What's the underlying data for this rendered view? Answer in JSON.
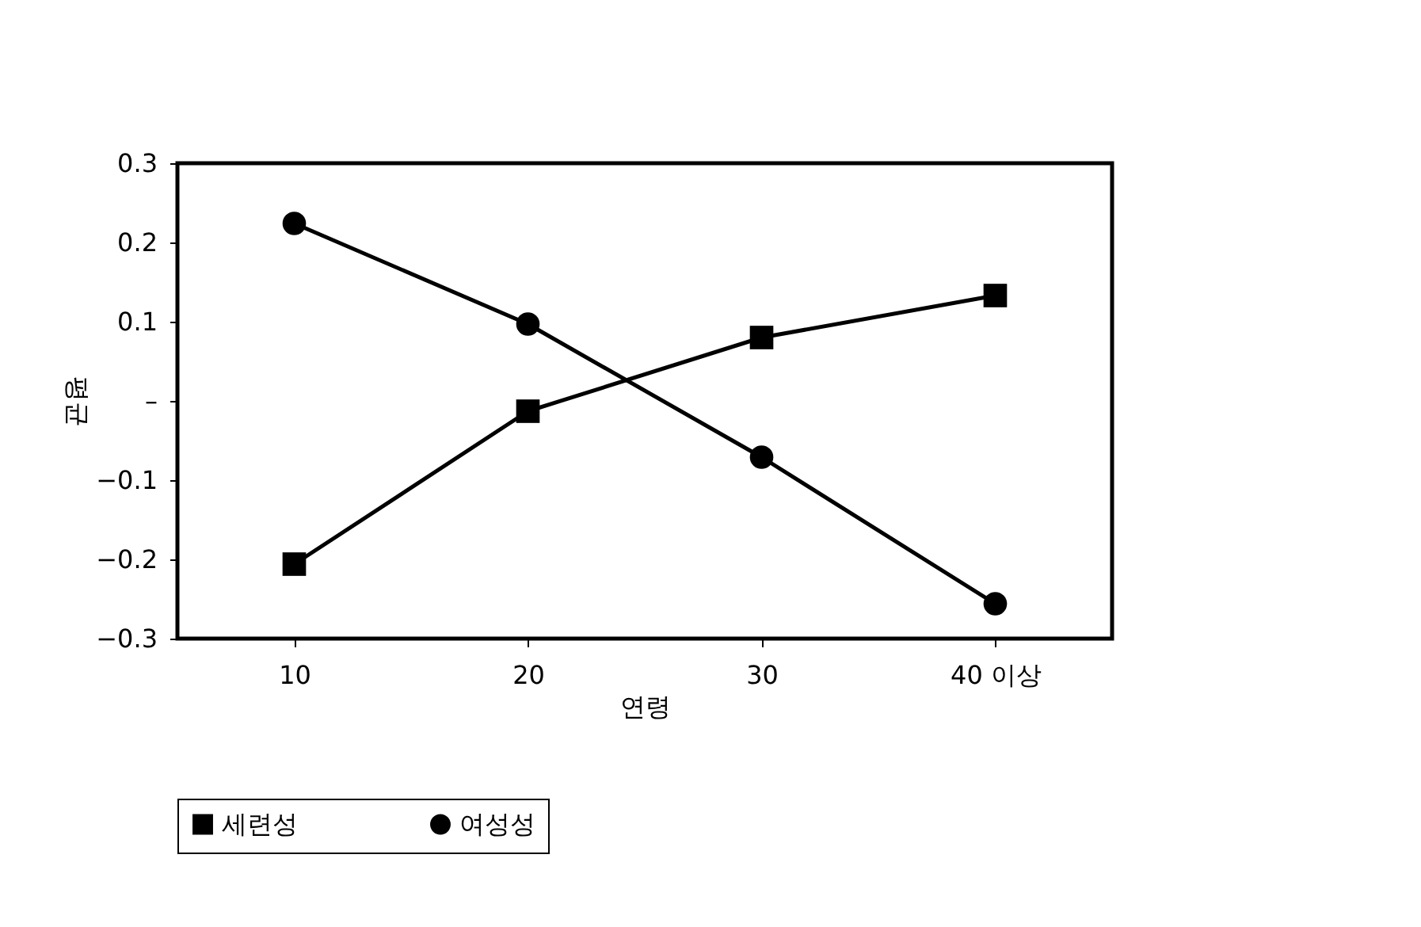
{
  "chart_data": {
    "type": "line",
    "xlabel": "연령",
    "ylabel": "평균",
    "categories": [
      "10",
      "20",
      "30",
      "40 이상"
    ],
    "series": [
      {
        "name": "세련성",
        "color": "#000000",
        "marker": "square",
        "values": [
          -0.206,
          -0.013,
          0.08,
          0.133
        ]
      },
      {
        "name": "여성성",
        "color": "#000000",
        "marker": "circle",
        "values": [
          0.224,
          0.097,
          -0.071,
          -0.256
        ]
      }
    ],
    "ylim": [
      -0.3,
      0.3
    ],
    "yticks": [
      0.3,
      0.2,
      0.1,
      {
        "value": 0,
        "label": "–"
      },
      {
        "value": -0.1,
        "label": "−0.1"
      },
      {
        "value": -0.2,
        "label": "−0.2"
      },
      {
        "value": -0.3,
        "label": "−0.3"
      }
    ],
    "grid": false,
    "legend": "bottom",
    "line_style": "solid"
  }
}
